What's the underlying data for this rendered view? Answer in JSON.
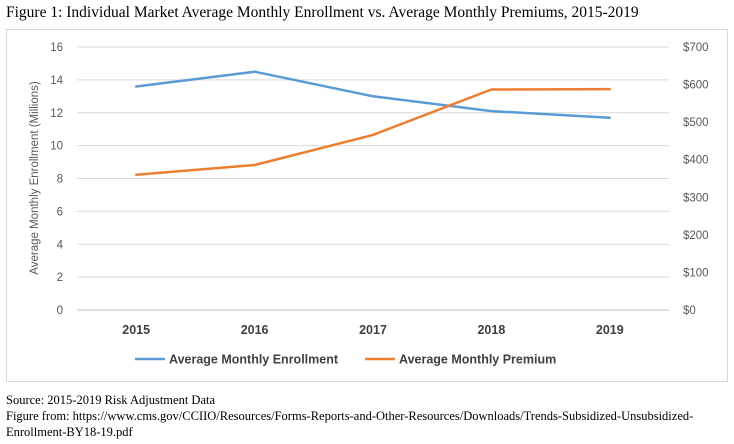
{
  "figure": {
    "title": "Figure 1: Individual Market Average Monthly Enrollment vs. Average Monthly Premiums, 2015-2019",
    "source": "Source: 2015-2019 Risk Adjustment Data",
    "figure_from": "Figure from: https://www.cms.gov/CCIIO/Resources/Forms-Reports-and-Other-Resources/Downloads/Trends-Subsidized-Unsubsidized-Enrollment-BY18-19.pdf"
  },
  "chart_data": {
    "type": "line",
    "categories": [
      "2015",
      "2016",
      "2017",
      "2018",
      "2019"
    ],
    "series": [
      {
        "name": "Average Monthly Enrollment",
        "axis": "left",
        "color": "#5b9bd5",
        "values": [
          13.6,
          14.5,
          13.0,
          12.1,
          11.7
        ]
      },
      {
        "name": "Average Monthly Premium",
        "axis": "right",
        "color": "#ed7d31",
        "values": [
          360,
          386,
          466,
          587,
          588
        ]
      }
    ],
    "ylabel": "Average Monthly Enrollment (Millions)",
    "ylim": [
      0,
      16
    ],
    "yticks": [
      "0",
      "2",
      "4",
      "6",
      "8",
      "10",
      "12",
      "14",
      "16"
    ],
    "y2lim": [
      0,
      700
    ],
    "y2ticks": [
      "$0",
      "$100",
      "$200",
      "$300",
      "$400",
      "$500",
      "$600",
      "$700"
    ],
    "grid": true,
    "legend_position": "bottom"
  }
}
